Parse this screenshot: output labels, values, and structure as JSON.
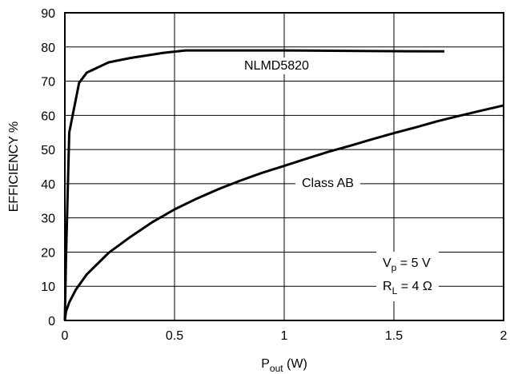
{
  "chart_data": {
    "type": "line",
    "title": "",
    "xlabel": "P",
    "xlabel_sub": "out",
    "xlabel_unit": " (W)",
    "ylabel": "EFFICIENCY %",
    "xlim": [
      0,
      2
    ],
    "ylim": [
      0,
      90
    ],
    "x_ticks": [
      0,
      0.5,
      1,
      1.5,
      2
    ],
    "x_tick_labels": [
      "0",
      "0.5",
      "1",
      "1.5",
      "2"
    ],
    "y_ticks": [
      0,
      10,
      20,
      30,
      40,
      50,
      60,
      70,
      80,
      90
    ],
    "y_tick_labels": [
      "0",
      "10",
      "20",
      "30",
      "40",
      "50",
      "60",
      "70",
      "80",
      "90"
    ],
    "grid": true,
    "series": [
      {
        "name": "NLMD5820",
        "x": [
          0,
          0.005,
          0.02,
          0.065,
          0.1,
          0.2,
          0.3,
          0.45,
          0.55,
          0.7,
          1.0,
          1.4,
          1.73
        ],
        "y": [
          0,
          18,
          55,
          69.5,
          72.5,
          75.5,
          76.8,
          78.3,
          79,
          79,
          79,
          78.8,
          78.7
        ]
      },
      {
        "name": "Class AB",
        "x": [
          0,
          0.005,
          0.02,
          0.05,
          0.1,
          0.2,
          0.3,
          0.4,
          0.5,
          0.6,
          0.7,
          0.8,
          0.9,
          1.0,
          1.1,
          1.2,
          1.3,
          1.4,
          1.5,
          1.6,
          1.7,
          1.8,
          1.9,
          2.0
        ],
        "y": [
          0,
          2.6,
          5.3,
          9.0,
          13.5,
          19.8,
          24.5,
          28.8,
          32.5,
          35.6,
          38.4,
          40.9,
          43.2,
          45.2,
          47.3,
          49.3,
          51.1,
          53.0,
          54.8,
          56.5,
          58.3,
          59.9,
          61.4,
          62.9
        ]
      }
    ],
    "annotations": {
      "series1_label": "NLMD5820",
      "series2_label": "Class AB",
      "cond1_main": "V",
      "cond1_sub": "p",
      "cond1_rest": " = 5 V",
      "cond2_main": "R",
      "cond2_sub": "L",
      "cond2_rest": " = 4 Ω"
    }
  }
}
